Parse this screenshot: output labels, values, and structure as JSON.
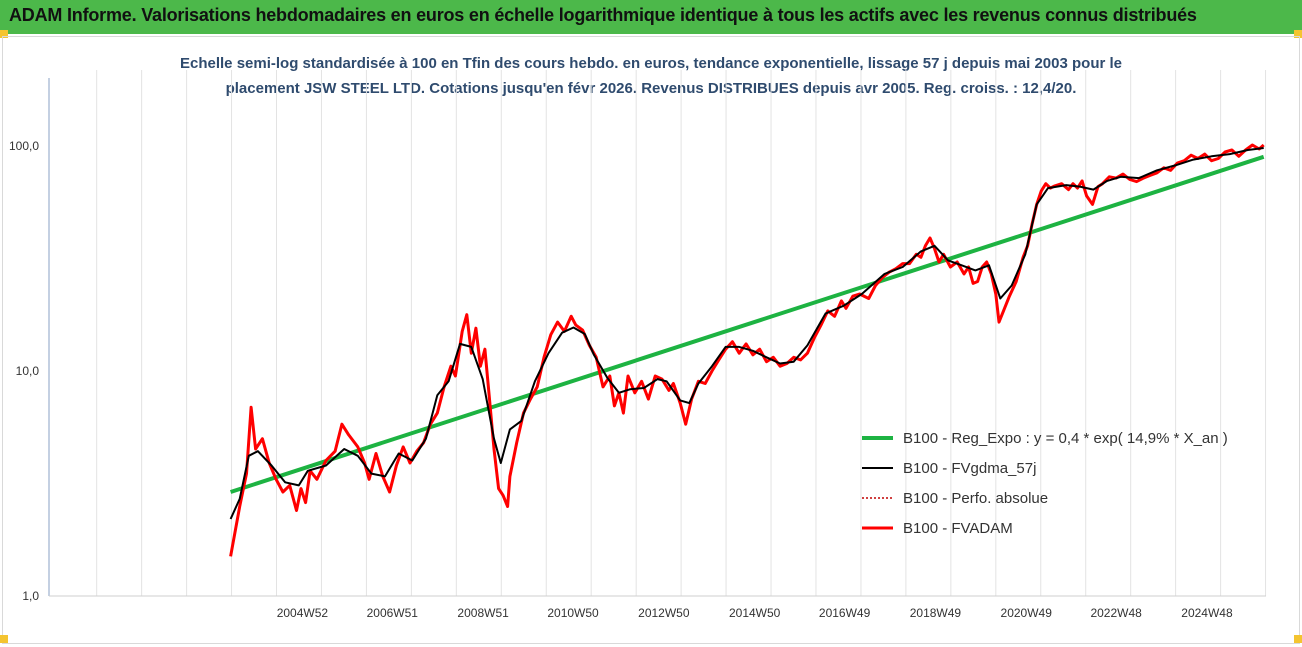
{
  "header": {
    "title": "ADAM Informe. Valorisations hebdomadaires en euros en échelle logarithmique identique à tous les actifs avec les revenus connus distribués"
  },
  "colors": {
    "header_bg": "#4cb84a",
    "trend": "#1db342",
    "smooth": "#000000",
    "perf": "#c00000",
    "fvadam": "#ff0000",
    "subtitle": "#2f4b6e"
  },
  "chart_data": {
    "type": "line",
    "subtitle_lines": [
      "Echelle semi-log standardisée à 100 en Tfin des cours hebdo. en euros, tendance exponentielle, lissage 57 j depuis mai 2003 pour le",
      "placement JSW STEEL LTD. Cotations jusqu'en févr 2026. Revenus DISTRIBUES depuis avr 2005. Reg. croiss. : 12,4/20."
    ],
    "y_scale": "log",
    "ylim": [
      1,
      100
    ],
    "y_ticks": [
      {
        "v": 1,
        "label": "1,0"
      },
      {
        "v": 10,
        "label": "10,0"
      },
      {
        "v": 100,
        "label": "100,0"
      }
    ],
    "xlim": [
      1999.4,
      2026.2
    ],
    "x_ticks": [
      {
        "v": 2004.98,
        "label": "2004W52"
      },
      {
        "v": 2006.96,
        "label": "2006W51"
      },
      {
        "v": 2008.96,
        "label": "2008W51"
      },
      {
        "v": 2010.94,
        "label": "2010W50"
      },
      {
        "v": 2012.94,
        "label": "2012W50"
      },
      {
        "v": 2014.94,
        "label": "2014W50"
      },
      {
        "v": 2016.92,
        "label": "2016W49"
      },
      {
        "v": 2018.92,
        "label": "2018W49"
      },
      {
        "v": 2020.92,
        "label": "2020W49"
      },
      {
        "v": 2022.9,
        "label": "2022W48"
      },
      {
        "v": 2024.9,
        "label": "2024W48"
      }
    ],
    "grid": "vertical",
    "legend_position": "right",
    "series": [
      {
        "name": "B100 - Reg_Expo : y = 0,4 * exp( 14,9% *  X_an )",
        "style": "trend",
        "points": [
          [
            2003.4,
            2.9
          ],
          [
            2026.15,
            89.5
          ]
        ]
      },
      {
        "name": "B100 - FVgdma_57j",
        "style": "smooth",
        "points": [
          [
            2003.4,
            2.2
          ],
          [
            2003.6,
            2.7
          ],
          [
            2003.8,
            4.2
          ],
          [
            2004.0,
            4.4
          ],
          [
            2004.3,
            3.8
          ],
          [
            2004.6,
            3.2
          ],
          [
            2004.9,
            3.1
          ],
          [
            2005.1,
            3.6
          ],
          [
            2005.5,
            3.8
          ],
          [
            2005.9,
            4.5
          ],
          [
            2006.2,
            4.2
          ],
          [
            2006.5,
            3.5
          ],
          [
            2006.8,
            3.4
          ],
          [
            2007.1,
            4.3
          ],
          [
            2007.4,
            4.0
          ],
          [
            2007.7,
            5.0
          ],
          [
            2007.95,
            7.8
          ],
          [
            2008.2,
            9.0
          ],
          [
            2008.45,
            13.2
          ],
          [
            2008.7,
            12.8
          ],
          [
            2008.95,
            9.2
          ],
          [
            2009.2,
            5.0
          ],
          [
            2009.35,
            3.9
          ],
          [
            2009.55,
            5.5
          ],
          [
            2009.8,
            6.0
          ],
          [
            2010.1,
            9.0
          ],
          [
            2010.4,
            12.0
          ],
          [
            2010.7,
            14.8
          ],
          [
            2010.95,
            15.6
          ],
          [
            2011.2,
            14.6
          ],
          [
            2011.4,
            11.8
          ],
          [
            2011.7,
            9.3
          ],
          [
            2011.95,
            8.0
          ],
          [
            2012.2,
            8.3
          ],
          [
            2012.5,
            8.4
          ],
          [
            2012.8,
            9.2
          ],
          [
            2013.0,
            9.0
          ],
          [
            2013.3,
            7.4
          ],
          [
            2013.5,
            7.2
          ],
          [
            2013.7,
            8.8
          ],
          [
            2014.0,
            10.5
          ],
          [
            2014.3,
            12.8
          ],
          [
            2014.6,
            12.8
          ],
          [
            2014.9,
            12.3
          ],
          [
            2015.2,
            11.5
          ],
          [
            2015.5,
            10.8
          ],
          [
            2015.8,
            11.0
          ],
          [
            2016.1,
            13.0
          ],
          [
            2016.5,
            18.0
          ],
          [
            2016.9,
            19.5
          ],
          [
            2017.3,
            22.0
          ],
          [
            2017.8,
            27.0
          ],
          [
            2018.2,
            29.0
          ],
          [
            2018.6,
            34.0
          ],
          [
            2018.9,
            36.0
          ],
          [
            2019.2,
            31.0
          ],
          [
            2019.5,
            29.5
          ],
          [
            2019.8,
            28.0
          ],
          [
            2020.1,
            29.5
          ],
          [
            2020.35,
            21.0
          ],
          [
            2020.6,
            24.0
          ],
          [
            2020.9,
            33.0
          ],
          [
            2021.15,
            55.0
          ],
          [
            2021.4,
            65.0
          ],
          [
            2021.8,
            67.0
          ],
          [
            2022.1,
            66.0
          ],
          [
            2022.4,
            64.0
          ],
          [
            2022.7,
            70.0
          ],
          [
            2023.0,
            73.0
          ],
          [
            2023.4,
            72.0
          ],
          [
            2023.8,
            78.0
          ],
          [
            2024.2,
            82.0
          ],
          [
            2024.6,
            87.0
          ],
          [
            2025.0,
            90.0
          ],
          [
            2025.4,
            92.0
          ],
          [
            2025.8,
            96.0
          ],
          [
            2026.15,
            98.0
          ]
        ]
      },
      {
        "name": "B100 - Perfo. absolue",
        "style": "perf",
        "points": []
      },
      {
        "name": "B100 - FVADAM",
        "style": "fvadam",
        "points": [
          [
            2003.4,
            1.5
          ],
          [
            2003.6,
            2.5
          ],
          [
            2003.75,
            3.5
          ],
          [
            2003.85,
            6.9
          ],
          [
            2003.95,
            4.5
          ],
          [
            2004.1,
            5.0
          ],
          [
            2004.25,
            3.9
          ],
          [
            2004.4,
            3.3
          ],
          [
            2004.55,
            2.9
          ],
          [
            2004.7,
            3.1
          ],
          [
            2004.85,
            2.4
          ],
          [
            2004.95,
            3.0
          ],
          [
            2005.05,
            2.6
          ],
          [
            2005.15,
            3.6
          ],
          [
            2005.3,
            3.3
          ],
          [
            2005.5,
            4.0
          ],
          [
            2005.7,
            4.4
          ],
          [
            2005.85,
            5.8
          ],
          [
            2006.0,
            5.2
          ],
          [
            2006.2,
            4.6
          ],
          [
            2006.35,
            3.9
          ],
          [
            2006.45,
            3.3
          ],
          [
            2006.6,
            4.3
          ],
          [
            2006.75,
            3.4
          ],
          [
            2006.9,
            2.9
          ],
          [
            2007.05,
            3.8
          ],
          [
            2007.2,
            4.6
          ],
          [
            2007.35,
            3.9
          ],
          [
            2007.5,
            4.4
          ],
          [
            2007.65,
            4.8
          ],
          [
            2007.8,
            5.8
          ],
          [
            2007.95,
            6.5
          ],
          [
            2008.1,
            8.5
          ],
          [
            2008.25,
            10.5
          ],
          [
            2008.35,
            9.5
          ],
          [
            2008.5,
            15.0
          ],
          [
            2008.6,
            17.8
          ],
          [
            2008.7,
            12.0
          ],
          [
            2008.8,
            15.5
          ],
          [
            2008.9,
            10.5
          ],
          [
            2009.0,
            12.5
          ],
          [
            2009.1,
            7.5
          ],
          [
            2009.2,
            4.5
          ],
          [
            2009.3,
            3.0
          ],
          [
            2009.4,
            2.8
          ],
          [
            2009.5,
            2.5
          ],
          [
            2009.55,
            3.4
          ],
          [
            2009.7,
            4.8
          ],
          [
            2009.85,
            6.5
          ],
          [
            2010.0,
            7.5
          ],
          [
            2010.15,
            8.5
          ],
          [
            2010.3,
            11.5
          ],
          [
            2010.45,
            14.5
          ],
          [
            2010.6,
            16.5
          ],
          [
            2010.75,
            15.0
          ],
          [
            2010.9,
            17.5
          ],
          [
            2011.0,
            16.0
          ],
          [
            2011.15,
            15.2
          ],
          [
            2011.3,
            13.0
          ],
          [
            2011.45,
            11.5
          ],
          [
            2011.6,
            8.5
          ],
          [
            2011.75,
            9.5
          ],
          [
            2011.85,
            7.0
          ],
          [
            2011.95,
            8.0
          ],
          [
            2012.05,
            6.5
          ],
          [
            2012.15,
            9.5
          ],
          [
            2012.3,
            8.0
          ],
          [
            2012.45,
            9.0
          ],
          [
            2012.6,
            7.5
          ],
          [
            2012.75,
            9.5
          ],
          [
            2012.9,
            9.2
          ],
          [
            2013.05,
            8.2
          ],
          [
            2013.15,
            8.8
          ],
          [
            2013.3,
            7.2
          ],
          [
            2013.42,
            5.8
          ],
          [
            2013.55,
            7.5
          ],
          [
            2013.7,
            9.0
          ],
          [
            2013.85,
            8.8
          ],
          [
            2014.0,
            10.0
          ],
          [
            2014.15,
            11.2
          ],
          [
            2014.3,
            12.5
          ],
          [
            2014.45,
            13.5
          ],
          [
            2014.6,
            12.0
          ],
          [
            2014.75,
            13.2
          ],
          [
            2014.9,
            11.8
          ],
          [
            2015.05,
            12.5
          ],
          [
            2015.2,
            11.0
          ],
          [
            2015.35,
            11.5
          ],
          [
            2015.5,
            10.5
          ],
          [
            2015.65,
            10.8
          ],
          [
            2015.8,
            11.5
          ],
          [
            2015.95,
            11.2
          ],
          [
            2016.1,
            12.0
          ],
          [
            2016.25,
            14.0
          ],
          [
            2016.4,
            16.0
          ],
          [
            2016.55,
            18.5
          ],
          [
            2016.7,
            17.5
          ],
          [
            2016.85,
            20.5
          ],
          [
            2016.95,
            19.0
          ],
          [
            2017.1,
            21.5
          ],
          [
            2017.25,
            22.0
          ],
          [
            2017.45,
            21.0
          ],
          [
            2017.6,
            24.0
          ],
          [
            2017.75,
            26.0
          ],
          [
            2017.9,
            27.5
          ],
          [
            2018.05,
            28.5
          ],
          [
            2018.2,
            30.0
          ],
          [
            2018.35,
            30.0
          ],
          [
            2018.5,
            33.0
          ],
          [
            2018.6,
            32.0
          ],
          [
            2018.7,
            36.0
          ],
          [
            2018.8,
            39.0
          ],
          [
            2018.9,
            35.0
          ],
          [
            2019.0,
            30.5
          ],
          [
            2019.1,
            33.0
          ],
          [
            2019.25,
            29.0
          ],
          [
            2019.4,
            30.5
          ],
          [
            2019.55,
            27.0
          ],
          [
            2019.65,
            29.0
          ],
          [
            2019.75,
            24.5
          ],
          [
            2019.85,
            25.0
          ],
          [
            2019.95,
            29.0
          ],
          [
            2020.05,
            30.5
          ],
          [
            2020.15,
            27.0
          ],
          [
            2020.25,
            22.0
          ],
          [
            2020.32,
            16.5
          ],
          [
            2020.42,
            18.5
          ],
          [
            2020.55,
            21.5
          ],
          [
            2020.7,
            25.0
          ],
          [
            2020.85,
            32.0
          ],
          [
            2020.95,
            36.0
          ],
          [
            2021.05,
            45.0
          ],
          [
            2021.15,
            55.0
          ],
          [
            2021.25,
            63.0
          ],
          [
            2021.35,
            68.0
          ],
          [
            2021.45,
            65.0
          ],
          [
            2021.55,
            66.5
          ],
          [
            2021.7,
            68.0
          ],
          [
            2021.85,
            64.0
          ],
          [
            2021.95,
            68.0
          ],
          [
            2022.05,
            65.0
          ],
          [
            2022.15,
            70.0
          ],
          [
            2022.25,
            60.0
          ],
          [
            2022.38,
            55.0
          ],
          [
            2022.5,
            66.0
          ],
          [
            2022.6,
            68.0
          ],
          [
            2022.75,
            73.0
          ],
          [
            2022.9,
            72.0
          ],
          [
            2023.05,
            75.0
          ],
          [
            2023.2,
            71.0
          ],
          [
            2023.35,
            69.5
          ],
          [
            2023.5,
            72.0
          ],
          [
            2023.65,
            74.0
          ],
          [
            2023.8,
            76.0
          ],
          [
            2023.95,
            80.0
          ],
          [
            2024.1,
            78.0
          ],
          [
            2024.25,
            84.0
          ],
          [
            2024.4,
            86.0
          ],
          [
            2024.55,
            91.0
          ],
          [
            2024.7,
            88.0
          ],
          [
            2024.85,
            92.0
          ],
          [
            2025.0,
            86.0
          ],
          [
            2025.15,
            88.0
          ],
          [
            2025.3,
            94.0
          ],
          [
            2025.45,
            96.0
          ],
          [
            2025.6,
            90.0
          ],
          [
            2025.75,
            96.0
          ],
          [
            2025.9,
            101.0
          ],
          [
            2026.05,
            97.0
          ],
          [
            2026.15,
            101.0
          ]
        ]
      }
    ]
  }
}
